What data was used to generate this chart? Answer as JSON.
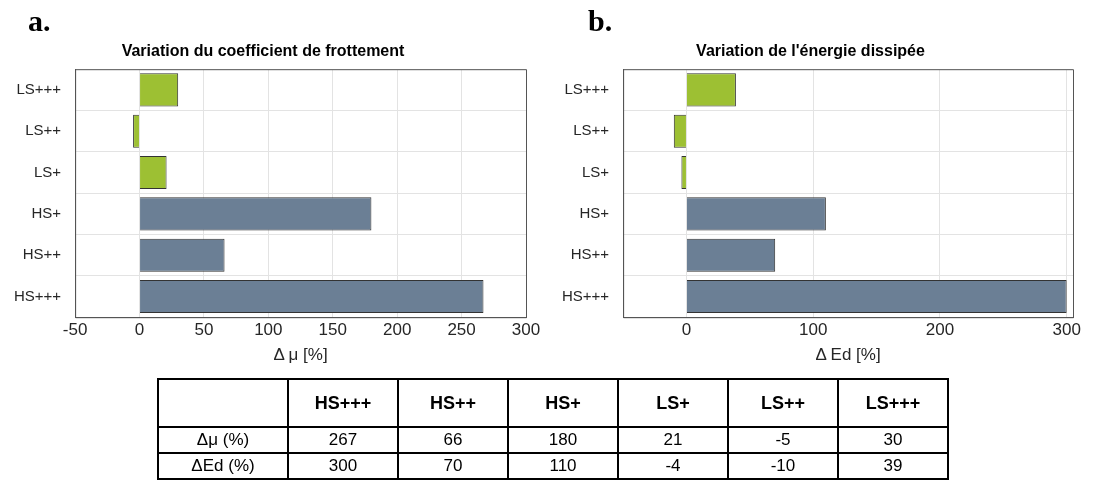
{
  "chart_data": [
    {
      "type": "bar",
      "orientation": "horizontal",
      "title": "Variation du coefficient de frottement",
      "xlabel": "Δ μ [%]",
      "categories": [
        "LS+++",
        "LS++",
        "LS+",
        "HS+",
        "HS++",
        "HS+++"
      ],
      "values": [
        30,
        -5,
        21,
        180,
        66,
        267
      ],
      "colors": [
        "#9dc033",
        "#9dc033",
        "#9dc033",
        "#6b7f95",
        "#6b7f95",
        "#6b7f95"
      ],
      "xlim": [
        -50,
        300
      ],
      "xticks": [
        -50,
        0,
        50,
        100,
        150,
        200,
        250,
        300
      ],
      "grid": true,
      "legend": false,
      "annotations": [
        "a."
      ]
    },
    {
      "type": "bar",
      "orientation": "horizontal",
      "title": "Variation de l'énergie dissipée",
      "xlabel": "Δ Ed [%]",
      "categories": [
        "LS+++",
        "LS++",
        "LS+",
        "HS+",
        "HS++",
        "HS+++"
      ],
      "values": [
        39,
        -10,
        -4,
        110,
        70,
        300
      ],
      "colors": [
        "#9dc033",
        "#9dc033",
        "#9dc033",
        "#6b7f95",
        "#6b7f95",
        "#6b7f95"
      ],
      "xlim": [
        -50,
        305
      ],
      "xticks": [
        0,
        100,
        200,
        300
      ],
      "grid": true,
      "legend": false,
      "annotations": [
        "b."
      ]
    },
    {
      "type": "other",
      "data_labels": true,
      "categories": [
        "HS+++",
        "HS++",
        "HS+",
        "LS+",
        "LS++",
        "LS+++"
      ],
      "series": [
        {
          "name": "Δμ (%)",
          "values": [
            267,
            66,
            180,
            21,
            -5,
            30
          ]
        },
        {
          "name": "ΔEd (%)",
          "values": [
            300,
            70,
            110,
            -4,
            -10,
            39
          ]
        }
      ]
    }
  ]
}
